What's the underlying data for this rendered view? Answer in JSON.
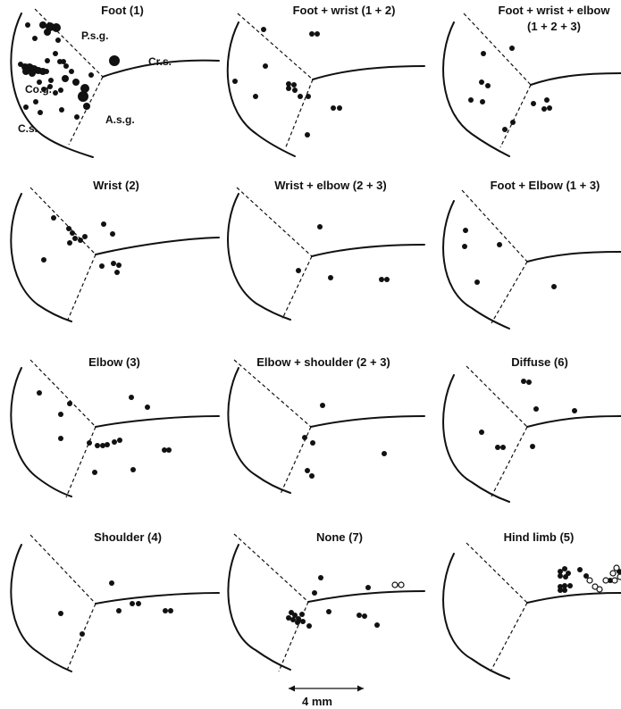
{
  "panels": [
    {
      "id": "foot",
      "title": "Foot (1)",
      "labels": [
        "P.s.g.",
        "Cr.s.",
        "Co.g.",
        "A.s.g.",
        "C.s."
      ]
    },
    {
      "id": "foot-wrist",
      "title": "Foot + wrist (1 + 2)"
    },
    {
      "id": "foot-wrist-elbow",
      "title": "Foot + wrist + elbow",
      "title2": "(1 + 2 + 3)"
    },
    {
      "id": "wrist",
      "title": "Wrist (2)"
    },
    {
      "id": "wrist-elbow",
      "title": "Wrist + elbow (2 + 3)"
    },
    {
      "id": "foot-elbow",
      "title": "Foot + Elbow (1 + 3)"
    },
    {
      "id": "elbow",
      "title": "Elbow (3)"
    },
    {
      "id": "elbow-shoulder",
      "title": "Elbow + shoulder (2 + 3)"
    },
    {
      "id": "diffuse",
      "title": "Diffuse (6)"
    },
    {
      "id": "shoulder",
      "title": "Shoulder (4)"
    },
    {
      "id": "none",
      "title": "None (7)"
    },
    {
      "id": "hind-limb",
      "title": "Hind limb (5)"
    }
  ],
  "scale_bar": {
    "label": "4 mm"
  }
}
